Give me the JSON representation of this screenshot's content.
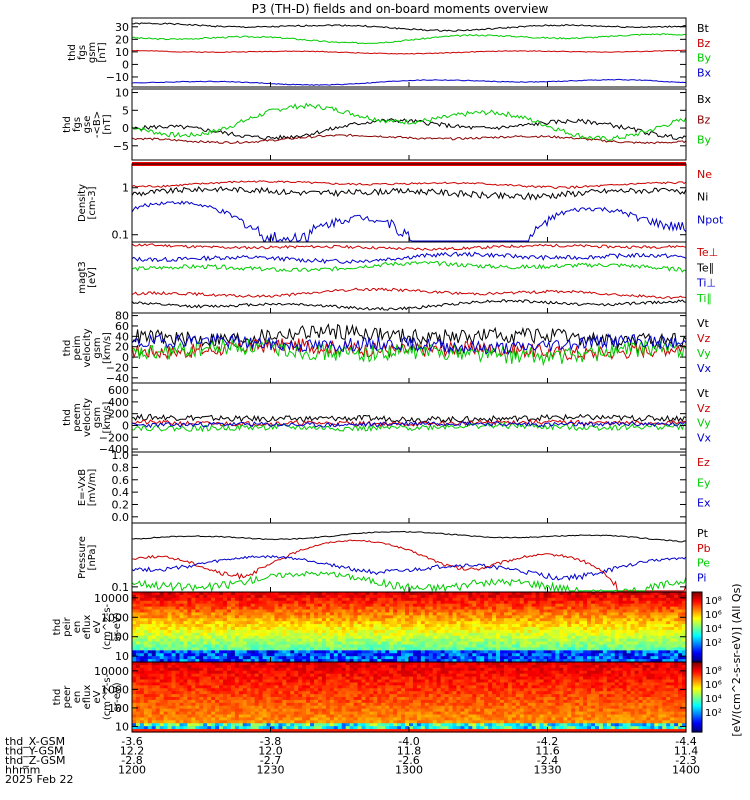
{
  "chart_data": {
    "type": "line",
    "title": "P3 (TH-D) fields and on-board moments overview",
    "xlim": [
      0,
      120
    ],
    "date_label": "2025 Feb 22",
    "orbit_rows": [
      {
        "name": "thd_X-GSM",
        "values": [
          "-3.6",
          "-3.8",
          "-4.0",
          "-4.2",
          "-4.4"
        ]
      },
      {
        "name": "thd_Y-GSM",
        "values": [
          "12.2",
          "12.0",
          "11.8",
          "11.6",
          "11.4"
        ]
      },
      {
        "name": "thd_Z-GSM",
        "values": [
          "-2.8",
          "-2.7",
          "-2.6",
          "-2.4",
          "-2.3"
        ]
      },
      {
        "name": "hhmm",
        "values": [
          "1200",
          "1230",
          "1300",
          "1330",
          "1400"
        ]
      }
    ],
    "panels": [
      {
        "id": "p1",
        "ylabel": [
          "thd",
          "fgs",
          "gsm",
          "[nT]"
        ],
        "ylim": [
          -18,
          37
        ],
        "yticks": [
          "30",
          "20",
          "10",
          "0",
          "−10"
        ],
        "ytick_values": [
          30,
          20,
          10,
          0,
          -10
        ],
        "series": [
          {
            "name": "Bt",
            "color": "#000000",
            "base": 30,
            "amp": 3,
            "noise": 0.6,
            "seed": 1
          },
          {
            "name": "Bz",
            "color": "#cc0000",
            "base": 10,
            "amp": 1.5,
            "noise": 0.3,
            "seed": 2
          },
          {
            "name": "By",
            "color": "#00cc00",
            "base": 21,
            "amp": 4,
            "noise": 0.6,
            "seed": 3
          },
          {
            "name": "Bx",
            "color": "#0000cc",
            "base": -14,
            "amp": 2.5,
            "noise": 0.3,
            "seed": 4
          }
        ]
      },
      {
        "id": "p2",
        "ylabel": [
          "thd",
          "fgs",
          "gse",
          "-<B>",
          "[nT]"
        ],
        "ylim": [
          -9,
          11
        ],
        "yticks": [
          "10",
          "5",
          "0",
          "−5"
        ],
        "ytick_values": [
          10,
          5,
          0,
          -5
        ],
        "series": [
          {
            "name": "Bx",
            "color": "#000000",
            "base": 0,
            "amp": 3,
            "noise": 0.6,
            "seed": 5
          },
          {
            "name": "Bz",
            "color": "#880000",
            "base": -3,
            "amp": 1.2,
            "noise": 0.3,
            "seed": 6
          },
          {
            "name": "By",
            "color": "#00cc00",
            "base": 2,
            "amp": 5,
            "noise": 0.7,
            "seed": 7
          }
        ]
      },
      {
        "id": "p3",
        "ylabel": [
          "Density",
          "[cm-3]"
        ],
        "log": true,
        "ylim": [
          0.07,
          3.2
        ],
        "yticks": [
          "1",
          "0.1"
        ],
        "ytick_values": [
          1,
          0.1
        ],
        "series": [
          {
            "name": "Ne",
            "color": "#cc0000",
            "base": 1.2,
            "amp": 0.18,
            "noise": 0.06,
            "seed": 8
          },
          {
            "name": "Ni",
            "color": "#000000",
            "base": 0.8,
            "amp": 0.15,
            "noise": 0.12,
            "seed": 9
          },
          {
            "name": "Npot",
            "color": "#0000cc",
            "base": 0.15,
            "amp": 0.35,
            "noise": 0.04,
            "seed": 10
          }
        ]
      },
      {
        "id": "p4",
        "ylabel": [
          "magt3",
          "[eV]"
        ],
        "ylim": [
          0,
          1
        ],
        "yticks": [],
        "ytick_values": [],
        "series": [
          {
            "name": "Te⊥",
            "color": "#cc0000",
            "base": 0.93,
            "amp": 0.03,
            "noise": 0.02,
            "seed": 11
          },
          {
            "name": "Te∥",
            "color": "#000000",
            "base": 0.12,
            "amp": 0.07,
            "noise": 0.02,
            "seed": 12
          },
          {
            "name": "Ti⊥",
            "color": "#0000cc",
            "base": 0.78,
            "amp": 0.06,
            "noise": 0.03,
            "seed": 13
          },
          {
            "name": "Ti∥",
            "color": "#00cc00",
            "base": 0.65,
            "amp": 0.06,
            "noise": 0.03,
            "seed": 14
          },
          {
            "name": "Te⊥b",
            "color": "#cc0000",
            "base": 0.28,
            "amp": 0.06,
            "noise": 0.02,
            "seed": 15,
            "nolabel": true
          }
        ]
      },
      {
        "id": "p5",
        "ylabel": [
          "thd",
          "peim",
          "velocity",
          "gsm",
          "[km/s]"
        ],
        "ylim": [
          -50,
          85
        ],
        "yticks": [
          "80",
          "60",
          "40",
          "20",
          "0",
          "−20",
          "−40"
        ],
        "ytick_values": [
          80,
          60,
          40,
          20,
          0,
          -20,
          -40
        ],
        "series": [
          {
            "name": "Vt",
            "color": "#000000",
            "base": 40,
            "amp": 10,
            "noise": 15,
            "seed": 16
          },
          {
            "name": "Vz",
            "color": "#cc0000",
            "base": 15,
            "amp": 8,
            "noise": 14,
            "seed": 17
          },
          {
            "name": "Vy",
            "color": "#00cc00",
            "base": 10,
            "amp": 10,
            "noise": 16,
            "seed": 18
          },
          {
            "name": "Vx",
            "color": "#0000cc",
            "base": 25,
            "amp": 8,
            "noise": 13,
            "seed": 19
          }
        ]
      },
      {
        "id": "p6",
        "ylabel": [
          "thd",
          "peem",
          "velocity",
          "gsm",
          "[km/s]"
        ],
        "ylim": [
          -450,
          720
        ],
        "yticks": [
          "600",
          "400",
          "200",
          "0",
          "−200",
          "−400"
        ],
        "ytick_values": [
          600,
          400,
          200,
          0,
          -200,
          -400
        ],
        "series": [
          {
            "name": "Vt",
            "color": "#000000",
            "base": 120,
            "amp": 20,
            "noise": 50,
            "seed": 20
          },
          {
            "name": "Vz",
            "color": "#cc0000",
            "base": 40,
            "amp": 20,
            "noise": 40,
            "seed": 21
          },
          {
            "name": "Vy",
            "color": "#00cc00",
            "base": -30,
            "amp": 30,
            "noise": 50,
            "seed": 22
          },
          {
            "name": "Vx",
            "color": "#0000cc",
            "base": 20,
            "amp": 20,
            "noise": 40,
            "seed": 23
          }
        ]
      },
      {
        "id": "p7",
        "ylabel": [
          "E=-VxB",
          "[mV/m]"
        ],
        "ylim": [
          -0.1,
          1.05
        ],
        "yticks": [
          "1.0",
          "0.8",
          "0.6",
          "0.4",
          "0.2",
          "0.0"
        ],
        "ytick_values": [
          1.0,
          0.8,
          0.6,
          0.4,
          0.2,
          0.0
        ],
        "series": [
          {
            "name": "Ez",
            "color": "#cc0000",
            "empty": true
          },
          {
            "name": "Ey",
            "color": "#00cc00",
            "empty": true
          },
          {
            "name": "Ex",
            "color": "#0000cc",
            "empty": true
          }
        ]
      },
      {
        "id": "p8",
        "ylabel": [
          "Pressure",
          "[nPa]"
        ],
        "log": true,
        "ylim": [
          0.08,
          1.6
        ],
        "yticks": [
          "0.1"
        ],
        "ytick_values": [
          0.1
        ],
        "series": [
          {
            "name": "Pt",
            "color": "#000000",
            "base": 0.9,
            "amp": 0.2,
            "noise": 0.02,
            "seed": 24
          },
          {
            "name": "Pb",
            "color": "#cc0000",
            "base": 0.35,
            "amp": 0.4,
            "noise": 0.02,
            "seed": 25
          },
          {
            "name": "Pe",
            "color": "#00cc00",
            "base": 0.12,
            "amp": 0.06,
            "noise": 0.02,
            "seed": 26
          },
          {
            "name": "Pi",
            "color": "#0000cc",
            "base": 0.25,
            "amp": 0.12,
            "noise": 0.02,
            "seed": 27
          }
        ]
      },
      {
        "id": "p9",
        "type": "heatmap",
        "ylabel": [
          "thd",
          "peir",
          "en",
          "eflux",
          "eV",
          "(cm^2-s-",
          "sr-eV)"
        ],
        "ylim": [
          5,
          20000
        ],
        "log": true,
        "yticks": [
          "10000",
          "1000",
          "100",
          "10"
        ],
        "ytick_values": [
          10000,
          1000,
          100,
          10
        ]
      },
      {
        "id": "p10",
        "type": "heatmap",
        "ylabel": [
          "thd",
          "peer",
          "en",
          "eflux",
          "eV",
          "(cm^2-s-",
          "sr-eV)"
        ],
        "ylim": [
          5,
          30000
        ],
        "log": true,
        "yticks": [
          "10000",
          "1000",
          "100",
          "10"
        ],
        "ytick_values": [
          10000,
          1000,
          100,
          10
        ]
      }
    ],
    "colorbar": {
      "label": "[eV/(cm^2-s-sr-eV)] (All Qs)",
      "upper_ticks": [
        "10⁸",
        "10⁶",
        "10⁴",
        "10²"
      ],
      "lower_ticks": [
        "10⁸",
        "10⁶",
        "10⁴",
        "10²"
      ]
    }
  }
}
